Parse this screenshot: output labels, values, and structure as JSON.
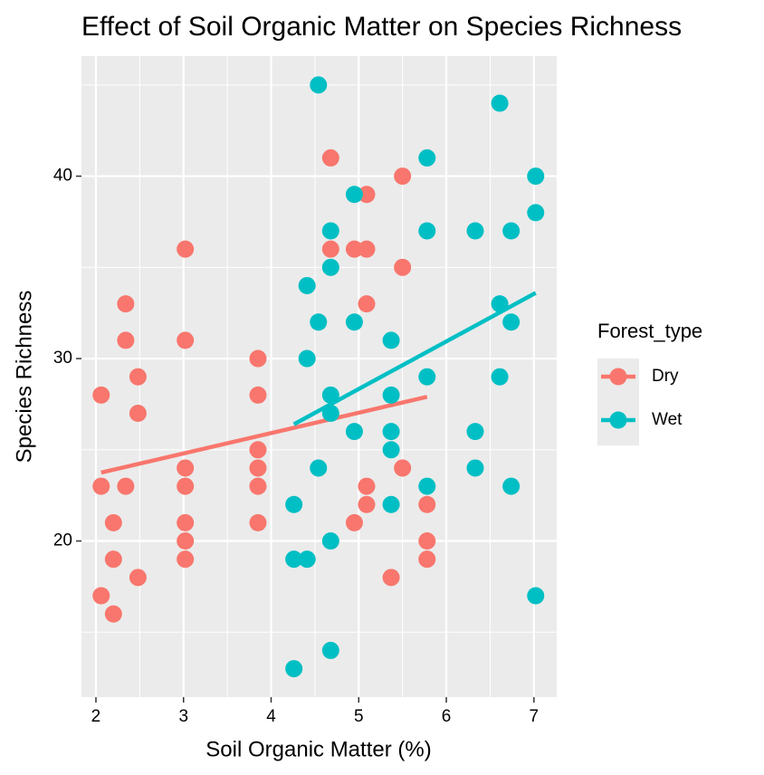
{
  "chart_data": {
    "type": "scatter",
    "title": "Effect of Soil Organic Matter on Species Richness",
    "x_label": "Soil Organic Matter (%)",
    "y_label": "Species Richness",
    "legend_title": "Forest_type",
    "legend_position": "right",
    "grid": true,
    "xlim": [
      1.835,
      7.26
    ],
    "xticks": [
      2,
      3,
      4,
      5,
      6,
      7
    ],
    "ylim": [
      11.44,
      46.58
    ],
    "yticks": [
      20,
      30,
      40
    ],
    "series": [
      {
        "name": "Dry",
        "color": "#F8766D",
        "x": [
          2.06,
          2.06,
          2.06,
          2.2,
          2.2,
          2.2,
          2.34,
          2.34,
          2.34,
          2.48,
          2.48,
          2.48,
          3.02,
          3.02,
          3.02,
          3.02,
          3.02,
          3.02,
          3.02,
          3.85,
          3.85,
          3.85,
          3.85,
          3.85,
          3.85,
          4.68,
          4.68,
          4.95,
          4.95,
          5.09,
          5.09,
          5.09,
          5.09,
          5.09,
          5.37,
          5.5,
          5.5,
          5.5,
          5.78,
          5.78,
          5.78
        ],
        "values": [
          28,
          23,
          17,
          21,
          19,
          16,
          33,
          31,
          23,
          29,
          27,
          18,
          36,
          31,
          24,
          23,
          21,
          20,
          19,
          30,
          28,
          25,
          24,
          23,
          21,
          41,
          36,
          36,
          21,
          39,
          36,
          33,
          23,
          22,
          18,
          40,
          35,
          24,
          22,
          20,
          19
        ],
        "trend": {
          "x": [
            2.06,
            5.78
          ],
          "y": [
            23.75,
            27.9
          ]
        }
      },
      {
        "name": "Wet",
        "color": "#00BFC4",
        "x": [
          4.54,
          4.26,
          4.26,
          4.26,
          4.41,
          4.41,
          4.41,
          4.54,
          4.54,
          4.68,
          4.68,
          4.68,
          4.68,
          4.68,
          4.68,
          4.95,
          4.95,
          4.95,
          5.37,
          5.37,
          5.37,
          5.37,
          5.37,
          5.78,
          5.78,
          5.78,
          5.78,
          6.33,
          6.33,
          6.33,
          6.61,
          6.61,
          6.61,
          6.74,
          6.74,
          6.74,
          7.02,
          7.02,
          7.02
        ],
        "values": [
          45,
          22,
          19,
          13,
          34,
          30,
          19,
          32,
          24,
          37,
          35,
          28,
          27,
          20,
          14,
          39,
          32,
          26,
          31,
          28,
          26,
          25,
          22,
          41,
          37,
          29,
          23,
          37,
          26,
          24,
          44,
          33,
          29,
          32,
          37,
          23,
          40,
          38,
          17
        ],
        "trend": {
          "x": [
            4.26,
            7.02
          ],
          "y": [
            26.4,
            33.6
          ]
        }
      }
    ]
  }
}
